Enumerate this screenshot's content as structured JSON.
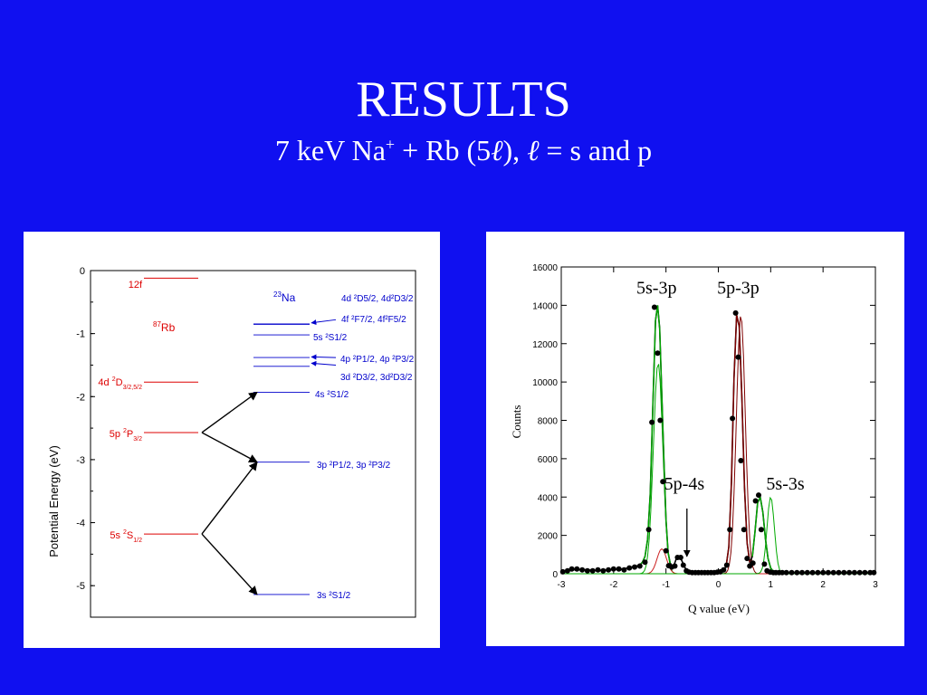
{
  "slide": {
    "title": "RESULTS",
    "subtitle": {
      "prefix": "7 keV Na",
      "ion_charge": "+",
      "middle": " + Rb (5",
      "ell": "ℓ",
      "after": "), ",
      "ell2": "ℓ",
      "suffix": " = s and p"
    }
  },
  "chart_data": [
    {
      "type": "energy_level_diagram",
      "ylabel": "Potential Energy (eV)",
      "ylim": [
        -5.5,
        0
      ],
      "yticks": [
        "0",
        "-1",
        "-2",
        "-3",
        "-4",
        "-5"
      ],
      "colors": {
        "rb": "#dd0000",
        "na": "#0000cc",
        "arrow": "#000000"
      },
      "rb_header": {
        "mass": "87",
        "symbol": "Rb"
      },
      "na_header": {
        "mass": "23",
        "symbol": "Na"
      },
      "rb_levels": [
        {
          "energy": -0.12,
          "label": "12f"
        },
        {
          "energy": -1.77,
          "label": "4d ²D₃/₂,₅/₂"
        },
        {
          "energy": -2.57,
          "label": "5p ²P₃/₂"
        },
        {
          "energy": -4.18,
          "label": "5s ²S₁/₂"
        }
      ],
      "na_levels": [
        {
          "energy": -0.85,
          "label": "4d ²D₅/₂, 4d²D₃/₂ / 4f ²F₇/₂, 4f²F₅/₂"
        },
        {
          "energy": -1.02,
          "label": "5s ²S₁/₂"
        },
        {
          "energy": -1.38,
          "label": "4p ²P₁/₂, 4p ²P₃/₂"
        },
        {
          "energy": -1.52,
          "label": "3d ²D₃/₂, 3d²D₃/₂"
        },
        {
          "energy": -1.93,
          "label": "4s ²S₁/₂"
        },
        {
          "energy": -3.04,
          "label": "3p ²P₁/₂, 3p ²P₃/₂"
        },
        {
          "energy": -5.14,
          "label": "3s ²S₁/₂"
        }
      ],
      "labels": {
        "rb_12f": "12f",
        "rb_4d": [
          "4d ",
          "2",
          "D",
          "3/2,5/2"
        ],
        "rb_5p": [
          "5p ",
          "2",
          "P",
          "3/2"
        ],
        "rb_5s": [
          "5s ",
          "2",
          "S",
          "1/2"
        ],
        "na_4d": "4d ²D5/2, 4d²D3/2",
        "na_4f": "4f ²F7/2, 4f²F5/2",
        "na_5s": "5s ²S1/2",
        "na_4p": "4p ²P1/2, 4p ²P3/2",
        "na_3d": "3d ²D3/2, 3d²D3/2",
        "na_4s": "4s ²S1/2",
        "na_3p": "3p ²P1/2, 3p ²P3/2",
        "na_3s": "3s ²S1/2"
      },
      "transitions": [
        {
          "from": "Rb 5p",
          "to": "Na 4s"
        },
        {
          "from": "Rb 5p",
          "to": "Na 3p"
        },
        {
          "from": "Rb 5s",
          "to": "Na 3p"
        },
        {
          "from": "Rb 5s",
          "to": "Na 3s"
        }
      ]
    },
    {
      "type": "scatter",
      "xlabel": "Q value (eV)",
      "ylabel": "Counts",
      "xlim": [
        -3,
        3
      ],
      "ylim": [
        0,
        16000
      ],
      "xticks": [
        -3,
        -2,
        -1,
        0,
        1,
        2,
        3
      ],
      "yticks": [
        0,
        2000,
        4000,
        6000,
        8000,
        10000,
        12000,
        14000,
        16000
      ],
      "annotations": [
        {
          "text": "5s-3p"
        },
        {
          "text": "5p-3p"
        },
        {
          "text": "5p-4s"
        },
        {
          "text": "5s-3s"
        }
      ],
      "data_points": {
        "x": [
          -2.97,
          -2.88,
          -2.8,
          -2.7,
          -2.6,
          -2.5,
          -2.4,
          -2.3,
          -2.2,
          -2.1,
          -2.0,
          -1.9,
          -1.8,
          -1.7,
          -1.6,
          -1.5,
          -1.4,
          -1.33,
          -1.27,
          -1.22,
          -1.16,
          -1.11,
          -1.06,
          -1.0,
          -0.95,
          -0.89,
          -0.83,
          -0.78,
          -0.72,
          -0.67,
          -0.61,
          -0.56,
          -0.5,
          -0.44,
          -0.38,
          -0.32,
          -0.26,
          -0.2,
          -0.14,
          -0.08,
          -0.02,
          0.04,
          0.1,
          0.16,
          0.22,
          0.27,
          0.33,
          0.38,
          0.43,
          0.49,
          0.55,
          0.6,
          0.66,
          0.71,
          0.77,
          0.82,
          0.88,
          0.93,
          0.99,
          1.05,
          1.1,
          1.16,
          1.22,
          1.3,
          1.4,
          1.5,
          1.6,
          1.7,
          1.8,
          1.9,
          2.0,
          2.1,
          2.2,
          2.3,
          2.4,
          2.5,
          2.6,
          2.7,
          2.8,
          2.9,
          2.97
        ],
        "y": [
          100,
          150,
          250,
          250,
          200,
          150,
          150,
          200,
          150,
          200,
          250,
          250,
          200,
          300,
          350,
          400,
          600,
          2300,
          7900,
          13900,
          11500,
          8000,
          4800,
          1200,
          420,
          350,
          400,
          850,
          850,
          450,
          150,
          80,
          60,
          60,
          60,
          60,
          60,
          60,
          60,
          60,
          80,
          100,
          200,
          450,
          2300,
          8100,
          13600,
          11300,
          5900,
          2300,
          800,
          400,
          550,
          3800,
          4100,
          2300,
          500,
          150,
          80,
          60,
          60,
          60,
          60,
          60,
          60,
          60,
          60,
          60,
          60,
          60,
          60,
          60,
          60,
          60,
          60,
          60,
          60,
          60,
          60,
          60,
          60
        ]
      },
      "fit_total": {
        "x": [
          -3.0,
          -2.8,
          -2.6,
          -2.4,
          -2.2,
          -2.0,
          -1.8,
          -1.6,
          -1.5,
          -1.45,
          -1.4,
          -1.35,
          -1.3,
          -1.25,
          -1.2,
          -1.16,
          -1.12,
          -1.08,
          -1.04,
          -1.0,
          -0.96,
          -0.92,
          -0.88,
          -0.84,
          -0.8,
          -0.75,
          -0.7,
          -0.65,
          -0.6,
          -0.55,
          -0.5,
          -0.4,
          -0.3,
          -0.2,
          -0.1,
          0.0,
          0.1,
          0.15,
          0.2,
          0.25,
          0.3,
          0.35,
          0.4,
          0.45,
          0.5,
          0.55,
          0.6,
          0.65,
          0.7,
          0.75,
          0.8,
          0.85,
          0.9,
          0.95,
          1.0,
          1.05,
          1.1,
          1.15,
          1.2,
          1.3,
          1.5,
          2.0,
          2.5,
          3.0
        ],
        "y": [
          120,
          200,
          220,
          180,
          180,
          220,
          260,
          380,
          450,
          600,
          900,
          1800,
          4200,
          8800,
          13200,
          14000,
          12800,
          9400,
          5900,
          2800,
          1100,
          550,
          420,
          500,
          800,
          880,
          700,
          380,
          160,
          90,
          70,
          60,
          60,
          60,
          60,
          60,
          150,
          420,
          1400,
          4800,
          10200,
          13500,
          12900,
          9200,
          4500,
          1600,
          600,
          900,
          2200,
          3700,
          4000,
          3200,
          1800,
          800,
          300,
          120,
          70,
          60,
          60,
          60,
          60,
          60,
          60,
          60
        ]
      },
      "series": [
        {
          "name": "5s-3p",
          "color": "#00aa00",
          "center": -1.15,
          "amplitude": 11000,
          "width": 0.09
        },
        {
          "name": "5p-3p",
          "color": "#800000",
          "center": 0.43,
          "amplitude": 13500,
          "width": 0.085
        },
        {
          "name": "5p-4s",
          "color": "#cc2222",
          "center": -1.08,
          "amplitude": 1300,
          "width": 0.09
        },
        {
          "name": "5s-3s",
          "color": "#00aa00",
          "center": 1.0,
          "amplitude": 4000,
          "width": 0.07
        }
      ]
    }
  ]
}
